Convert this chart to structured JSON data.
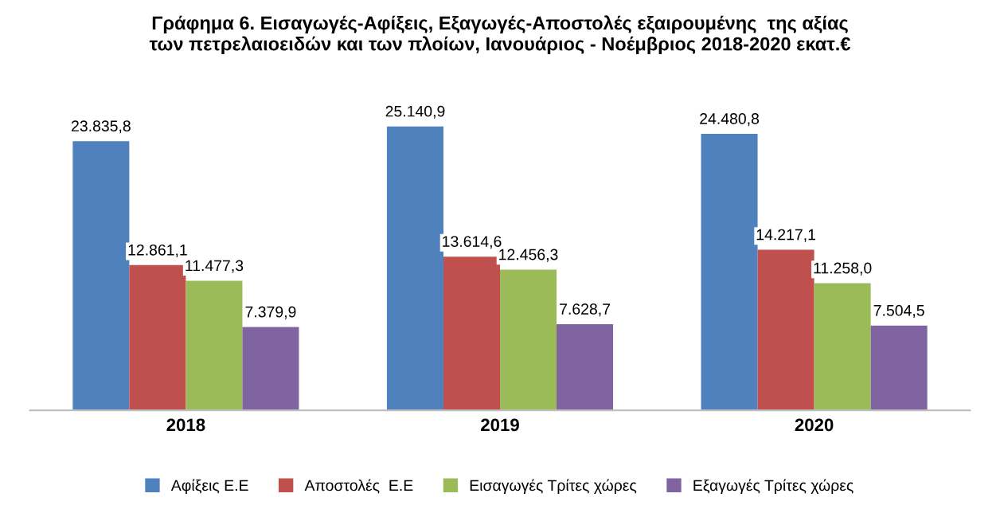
{
  "chart_data": {
    "type": "bar",
    "title": "Γράφημα 6. Εισαγωγές-Αφίξεις, Εξαγωγές-Αποστολές εξαιρουμένης  της αξίας\nτων πετρελαιοειδών και των πλοίων, Ιανουάριος - Νοέμβριος 2018-2020 εκατ.€",
    "categories": [
      "2018",
      "2019",
      "2020"
    ],
    "series": [
      {
        "name": "Αφίξεις Ε.Ε",
        "color": "#4f81bd",
        "values": [
          23835.8,
          25140.9,
          24480.8
        ],
        "value_labels": [
          "23.835,8",
          "25.140,9",
          "24.480,8"
        ]
      },
      {
        "name": "Αποστολές  Ε.Ε",
        "color": "#c0504d",
        "values": [
          12861.1,
          13614.6,
          14217.1
        ],
        "value_labels": [
          "12.861,1",
          "13.614,6",
          "14.217,1"
        ]
      },
      {
        "name": "Εισαγωγές Τρίτες χώρες",
        "color": "#9bbb59",
        "values": [
          11477.3,
          12456.3,
          11258.0
        ],
        "value_labels": [
          "11.477,3",
          "12.456,3",
          "11.258,0"
        ]
      },
      {
        "name": "Εξαγωγές Τρίτες χώρες",
        "color": "#8064a2",
        "values": [
          7379.9,
          7628.7,
          7504.5
        ],
        "value_labels": [
          "7.379,9",
          "7.628,7",
          "7.504,5"
        ]
      }
    ],
    "legend": "bottom"
  }
}
